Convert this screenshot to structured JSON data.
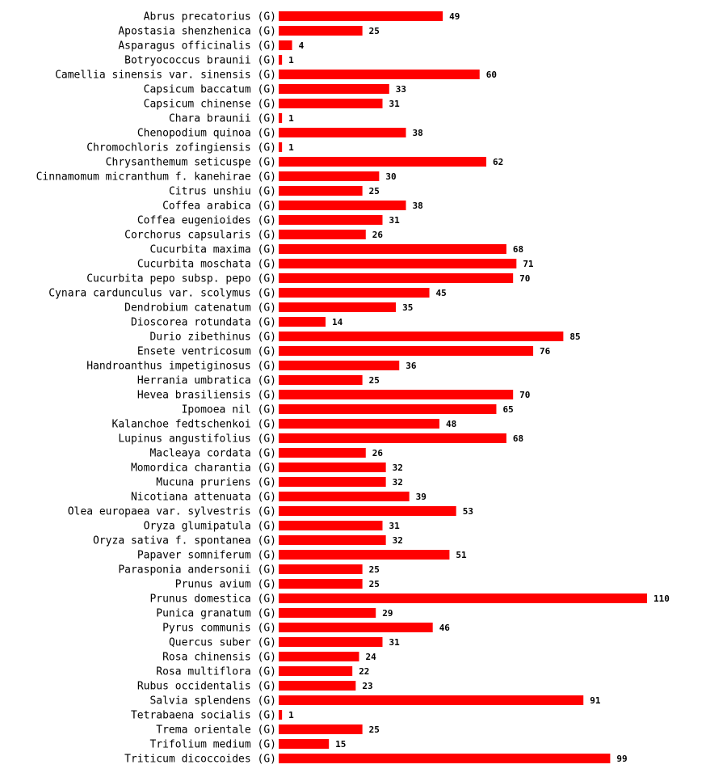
{
  "chart_data": {
    "type": "bar",
    "orientation": "horizontal",
    "title": "",
    "xlabel": "",
    "ylabel": "",
    "grid": false,
    "bar_color": "#ff0000",
    "xlim": [
      0,
      110
    ],
    "tag": "(G)",
    "categories": [
      "Abrus precatorius",
      "Apostasia shenzhenica",
      "Asparagus officinalis",
      "Botryococcus braunii",
      "Camellia sinensis var. sinensis",
      "Capsicum baccatum",
      "Capsicum chinense",
      "Chara braunii",
      "Chenopodium quinoa",
      "Chromochloris zofingiensis",
      "Chrysanthemum seticuspe",
      "Cinnamomum micranthum f. kanehirae",
      "Citrus unshiu",
      "Coffea arabica",
      "Coffea eugenioides",
      "Corchorus capsularis",
      "Cucurbita maxima",
      "Cucurbita moschata",
      "Cucurbita pepo subsp. pepo",
      "Cynara cardunculus var. scolymus",
      "Dendrobium catenatum",
      "Dioscorea rotundata",
      "Durio zibethinus",
      "Ensete ventricosum",
      "Handroanthus impetiginosus",
      "Herrania umbratica",
      "Hevea brasiliensis",
      "Ipomoea nil",
      "Kalanchoe fedtschenkoi",
      "Lupinus angustifolius",
      "Macleaya cordata",
      "Momordica charantia",
      "Mucuna pruriens",
      "Nicotiana attenuata",
      "Olea europaea var. sylvestris",
      "Oryza glumipatula",
      "Oryza sativa f. spontanea",
      "Papaver somniferum",
      "Parasponia andersonii",
      "Prunus avium",
      "Prunus domestica",
      "Punica granatum",
      "Pyrus communis",
      "Quercus suber",
      "Rosa chinensis",
      "Rosa multiflora",
      "Rubus occidentalis",
      "Salvia splendens",
      "Tetrabaena socialis",
      "Trema orientale",
      "Trifolium medium",
      "Triticum dicoccoides"
    ],
    "values": [
      49,
      25,
      4,
      1,
      60,
      33,
      31,
      1,
      38,
      1,
      62,
      30,
      25,
      38,
      31,
      26,
      68,
      71,
      70,
      45,
      35,
      14,
      85,
      76,
      36,
      25,
      70,
      65,
      48,
      68,
      26,
      32,
      32,
      39,
      53,
      31,
      32,
      51,
      25,
      25,
      110,
      29,
      46,
      31,
      24,
      22,
      23,
      91,
      1,
      25,
      15,
      99
    ]
  }
}
